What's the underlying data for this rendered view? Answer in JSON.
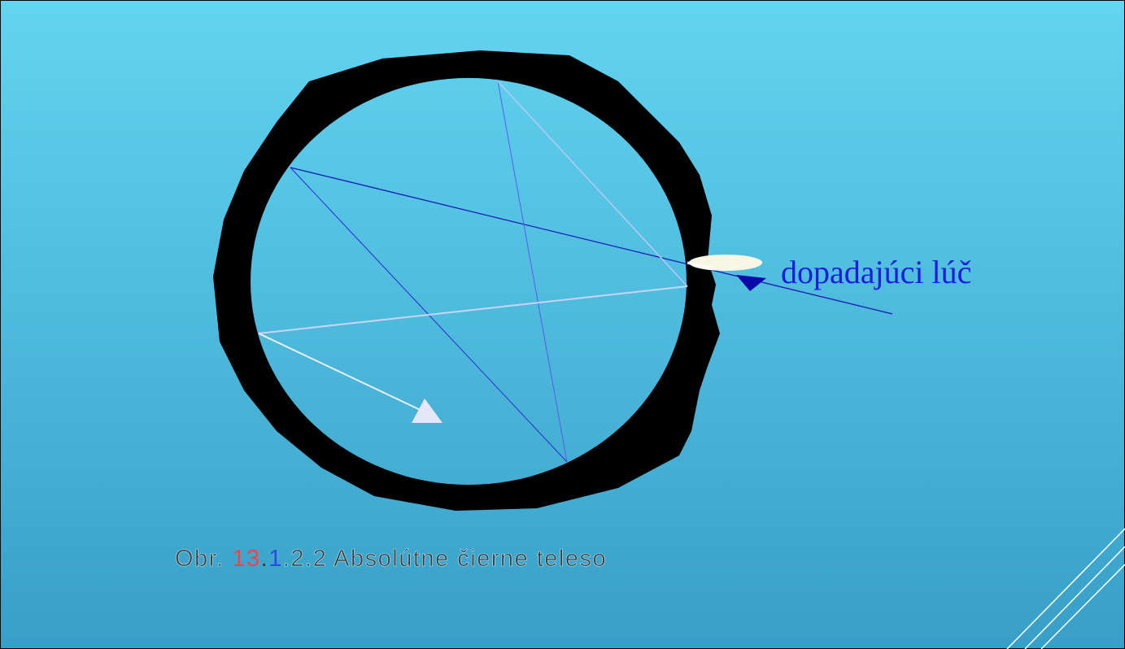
{
  "label": "dopadajúci lúč",
  "caption": {
    "parts": [
      "Obr. ",
      "13",
      ".",
      "1",
      ".2.2 Absolútne čierne teleso"
    ]
  }
}
